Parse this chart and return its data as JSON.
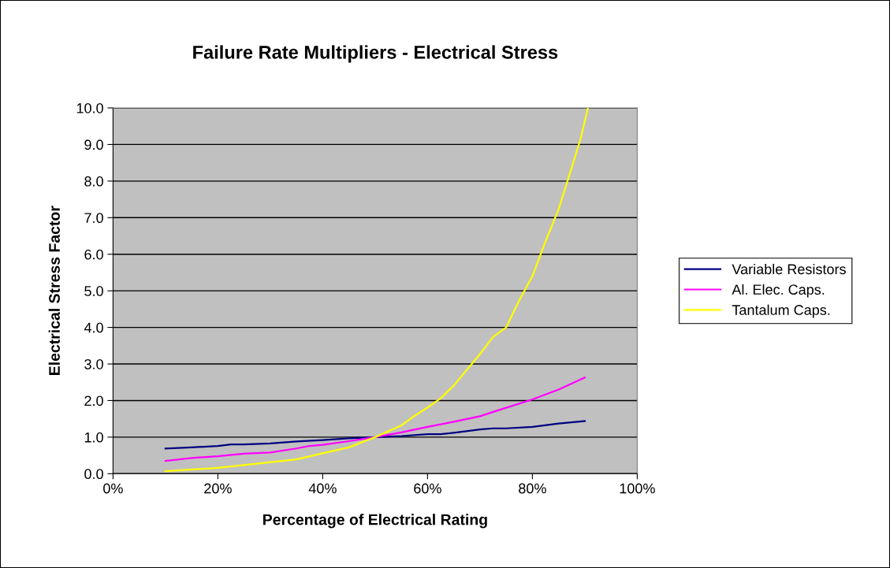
{
  "chart_data": {
    "type": "line",
    "title": "Failure Rate Multipliers - Electrical Stress",
    "xlabel": "Percentage of Electrical Rating",
    "ylabel": "Electrical Stress Factor",
    "series": [
      {
        "name": "Variable Resistors",
        "color": "#000080",
        "x": [
          10,
          15,
          20,
          22.5,
          25,
          30,
          35,
          40,
          45,
          50,
          55,
          60,
          62.5,
          65,
          70,
          72.5,
          75,
          80,
          85,
          90
        ],
        "values": [
          0.69,
          0.72,
          0.76,
          0.8,
          0.8,
          0.83,
          0.88,
          0.92,
          0.97,
          1.0,
          1.03,
          1.08,
          1.08,
          1.12,
          1.21,
          1.24,
          1.24,
          1.28,
          1.37,
          1.44
        ]
      },
      {
        "name": "Al. Elec. Caps.",
        "color": "#ff00ff",
        "x": [
          10,
          15,
          20,
          25,
          30,
          35,
          37.5,
          40,
          45,
          50,
          55,
          60,
          65,
          70,
          72.5,
          80,
          85,
          90
        ],
        "values": [
          0.35,
          0.43,
          0.48,
          0.55,
          0.58,
          0.69,
          0.76,
          0.79,
          0.89,
          1.0,
          1.13,
          1.28,
          1.42,
          1.57,
          1.69,
          2.03,
          2.3,
          2.63
        ]
      },
      {
        "name": "Tantalum Caps.",
        "color": "#ffff00",
        "x": [
          10,
          20,
          35,
          40,
          45,
          50,
          55,
          57.5,
          60,
          62.5,
          65,
          70,
          72.5,
          75,
          77.5,
          80,
          82.5,
          85,
          87.5,
          89.2,
          90.6
        ],
        "values": [
          0.07,
          0.16,
          0.39,
          0.56,
          0.72,
          1.0,
          1.32,
          1.58,
          1.81,
          2.06,
          2.41,
          3.27,
          3.74,
          4.0,
          4.74,
          5.4,
          6.35,
          7.23,
          8.37,
          9.16,
          10.0
        ]
      }
    ],
    "xlim": [
      0,
      100
    ],
    "xticks": [
      {
        "value": 0,
        "label": "0%"
      },
      {
        "value": 20,
        "label": "20%"
      },
      {
        "value": 40,
        "label": "40%"
      },
      {
        "value": 60,
        "label": "60%"
      },
      {
        "value": 80,
        "label": "80%"
      },
      {
        "value": 100,
        "label": "100%"
      }
    ],
    "ylim": [
      0,
      10
    ],
    "yticks": [
      {
        "value": 0,
        "label": "0.0"
      },
      {
        "value": 1,
        "label": "1.0"
      },
      {
        "value": 2,
        "label": "2.0"
      },
      {
        "value": 3,
        "label": "3.0"
      },
      {
        "value": 4,
        "label": "4.0"
      },
      {
        "value": 5,
        "label": "5.0"
      },
      {
        "value": 6,
        "label": "6.0"
      },
      {
        "value": 7,
        "label": "7.0"
      },
      {
        "value": 8,
        "label": "8.0"
      },
      {
        "value": 9,
        "label": "9.0"
      },
      {
        "value": 10,
        "label": "10.0"
      }
    ],
    "grid": "y",
    "legend": "right",
    "marker": "none",
    "line_style": "solid"
  }
}
